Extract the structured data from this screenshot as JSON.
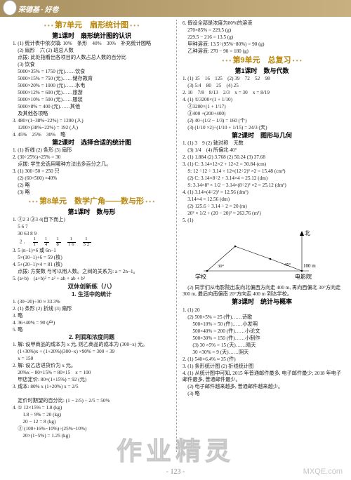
{
  "header": {
    "title": "荣德基 · 好卷"
  },
  "left": {
    "unit7": "第7单元　扇形统计图",
    "u7_l1": "第1课时　扇形统计图的认识",
    "u7_l1_items": [
      "1. (1) 统计表中依次填: 10%　条形　40%　30%　补充统计图略",
      "　(2) 扇形　六 (2) 班总人数",
      "　点拨: 此处指看出各项目的人数占总人数的百分比",
      "　(3) 饮食",
      "　5000×35% = 1750 (元)……饮食",
      "　5000×15% = 750 (元)……储存教育",
      "　5000×20% = 1000 (元)……水电",
      "　5000×12% = 600 (元)……旅游",
      "　5000×10% = 500 (元)……服装",
      "　5000×8% = 400 (元)……其他",
      "　及其他各项略",
      "3. 480×(1−38%−22%) = 1200 (人)",
      "　1200×(38%−22%) = 192 (人)",
      "4. 45%　25%　30%　略"
    ],
    "u7_l2": "第2课时　选择合适的统计图",
    "u7_l2_items": [
      "1. (1) 折线 (2) 条形 (3) 扇形",
      "2. (30÷25%)×25% = 30",
      "　点拨: 学生会选用哪种方法出多百分之几。",
      "3. (1) 300÷50 = 250 只",
      "　(2) (60+500) ×40% ",
      "　(2) 略",
      "　(3) 略"
    ],
    "unit8": "第8单元　数学广角——数与形",
    "u8_l1": "第1课时　数与形",
    "u8_l1_items": [
      "1. ②2 3 ③3 4(自下而上)",
      "　5 6 7",
      "　30 63 8 9"
    ],
    "u8_frac_row": [
      [
        "1",
        "1"
      ],
      [
        "1",
        "4"
      ],
      [
        "1",
        "8"
      ],
      [
        "1",
        "16"
      ],
      [
        "1",
        "32"
      ]
    ],
    "u8_after_frac": [
      "3. 5 (n−1)×6 或 6n−1",
      "　5×(10−1)+6 = 59 (枚)",
      "4. 5+(20−1)×4 = 81 (枚)",
      "　点拨: 方案数 与可以用人数。之间的关系为: a = 2n−1。",
      "5. (a+b)　(a+b)² = a² + ab + ab + b²"
    ],
    "sxcl": "双休创新练（八）",
    "sxcl_1": "1. 生活中的统计",
    "sxcl_1_items": [
      "1. (30−20)÷30 ≈ 33.3%",
      "2. (1) 条形 (2) 折线 (3) 扇形",
      "3. 略",
      "4. 36+40% = 90 (户)",
      "5. 略"
    ],
    "sxcl_2": "2. 利润和浓度问题",
    "sxcl_2_items": [
      "1. 解: 设甲商品的成本为 x 元, 则乙商品的成本为 (300−x) 元。",
      "　(1+30%)x + (1+20%)(300−x) ×90% = 300 + 39",
      "　x = 150",
      "2. 解: 设乙店进货价为 x 元。",
      "　20%x − 80×15% = 80×15　x = 100",
      "　甲店定价: 80×(1+15%) = 92 (元)",
      "3. 成本: 80% x (1+20%) x = 2/5",
      "　　　　　　　　　　　　　",
      "　定价时期望的百分比: (1 − 2/5) ÷ 2/5 = 50%",
      "4. ① 12×15% = 1.8 (kg)",
      "　　1.8 ÷ 9% = 20 (kg)",
      "　　20 − 12 = 8 (kg)",
      "　② (100+16%−10%)÷(25%−10%)",
      "　　20×(1−5%) = 1.25 (kg)"
    ]
  },
  "right": {
    "pre9": [
      "6. 假设全部是浓度为80%的溶液",
      "　270×85% = 229.5 (g)",
      "　229.5 − 216 = 13.5 (g)",
      "　甲种溶液: 13.5÷(95%−80%) = 90 (g)",
      "　乙种溶液: 270 − 90 = 180 (g)"
    ],
    "unit9": "第9单元　总复习",
    "u9_l1": "第1课时　数与代数",
    "u9_l1_items": [
      "1. (1) 15　16　125　(2) 39　72　52　98",
      "　(3) 5:4　80　25　(4) 25",
      "2. 10　7/8　8/13　2/3　x = 30　x = 8/19",
      "4. (1) ①3200×(1 + 1/10)",
      "　②3200×(1 + 1/17)",
      "　③400 +(200+400)",
      "　(2) 40÷(1/2 − 1/3) = 160 (个)",
      "　(3) (1/10 ×2)÷(1/10 + 1/15) = 24/3 (天)"
    ],
    "u9_l2": "第2课时　图形与几何",
    "u9_l2_items": [
      "1. (1) 3　9 (2) 轴对称　无数",
      "　(3) 1/4　(4) 所偏北 40°",
      "2. (1) 1.884 (2) 3.768 (2) 50.24 (3) 37.68",
      "3. (1) C: 3.14×12×2 + 12×2 = 30.84 (cm)",
      "　S: 12 ÷12 ÷ 3.14 + 12×(12÷2)² ×2 = 15.48 (cm²)",
      "　(2) C: 3.14×8÷2 + 3.14×4 = 25.12 (dm)",
      "　S: 3.14×8² × 1/2 − 3.14×(8÷2)² ×2 = 25.12 (dm²)",
      "4. (1) 3.14×(4÷2)² = 12.56 (dm²)",
      "　3.14×4 = 12.56 (dm)",
      "　(2) 125.6 ÷ 3.14 ÷ 2 = 20 (m)",
      "　20² × 1/2 + (20 − 20)² = 263.76 (m²)",
      "5. (1)"
    ],
    "diagram": {
      "north": "北",
      "school": "学校",
      "cinema": "电影院",
      "dist": "100 m",
      "angle1": "30°",
      "angle2": "45°"
    },
    "u9_l2_after": [
      "　(2) 同学们从电影院出发向北偏西方向走 400 m, 再向西偏北 30°方向走 300 m, 最后向南偏南 20°方向走 400 m 到达学校。"
    ],
    "u9_l3": "第3课时　统计与概率",
    "u9_l3_items": [
      "1. (1) 20",
      "　(2) 500×5% = 25 (件)……诗歌",
      "　　500×10% = 50 (件)……小发明",
      "　　500×40% = 200 (件)……小论文",
      "　　500×30% = 150 (件)……小制作",
      "　　(3) 30 ×5% = 15 (天)……晴天",
      "　　30 ×30% = 9 (天)……阴天",
      "2. (1) 540×6.4% ≈ 35 (件)",
      "3. (1) 条形统计图 (2) 折线统计图",
      "4. (1) 从统计图中可知, 2015 年普通邮件最多, 电子邮件最少; 2018 年电子邮件最多, 普通邮件最少。",
      "　(2) 电子邮件越来越多, 普通邮件越来越少。",
      "　(3) 略"
    ]
  },
  "pagenum": "- 123 -",
  "wm1": "作业精灵",
  "wm2": "MXQE.com"
}
